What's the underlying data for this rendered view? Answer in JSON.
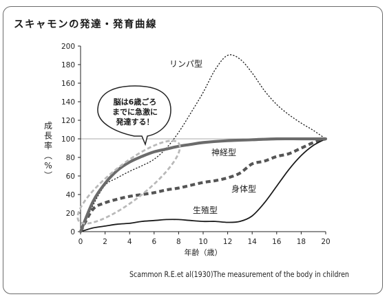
{
  "title": "スキャモンの発達・発育曲線",
  "source": "Scammon R.E.et al(1930)The measurement of the body in children",
  "chart_data": {
    "type": "line",
    "ylabel": "成長率（%）",
    "xlabel": "年齢（歳）",
    "xlim": [
      0,
      20
    ],
    "ylim": [
      0,
      200
    ],
    "xticks": [
      0,
      2,
      4,
      6,
      8,
      10,
      12,
      14,
      16,
      18,
      20
    ],
    "yticks": [
      0,
      20,
      40,
      60,
      80,
      100,
      120,
      140,
      160,
      180,
      200
    ],
    "grid": false,
    "series": [
      {
        "name": "リンパ型",
        "style": "dotted",
        "color": "#1a1a1a",
        "x": [
          0,
          1,
          2,
          3,
          4,
          5,
          6,
          7,
          8,
          9,
          10,
          11,
          12,
          13,
          14,
          15,
          16,
          17,
          18,
          19,
          20
        ],
        "y": [
          0,
          28,
          50,
          58,
          65,
          71,
          78,
          90,
          107,
          128,
          150,
          175,
          190,
          186,
          171,
          152,
          137,
          126,
          117,
          109,
          100
        ]
      },
      {
        "name": "神経型",
        "style": "solid",
        "color": "#6b6b6b",
        "x": [
          0,
          1,
          2,
          3,
          4,
          5,
          6,
          7,
          8,
          9,
          10,
          12,
          14,
          16,
          18,
          20
        ],
        "y": [
          0,
          32,
          52,
          66,
          75,
          81,
          86,
          89,
          92,
          94,
          96,
          98,
          99,
          100,
          100,
          100
        ]
      },
      {
        "name": "身体型",
        "style": "dashed",
        "color": "#555555",
        "x": [
          0,
          1,
          2,
          3,
          4,
          5,
          6,
          7,
          8,
          9,
          10,
          11,
          12,
          13,
          14,
          15,
          16,
          17,
          18,
          19,
          20
        ],
        "y": [
          0,
          24,
          31,
          35,
          38,
          40,
          42,
          45,
          47,
          50,
          53,
          55,
          58,
          63,
          73,
          76,
          81,
          84,
          90,
          96,
          100
        ]
      },
      {
        "name": "生殖型",
        "style": "solid",
        "color": "#1a1a1a",
        "x": [
          0,
          1,
          2,
          3,
          4,
          5,
          6,
          7,
          8,
          9,
          10,
          11,
          12,
          13,
          14,
          15,
          16,
          17,
          18,
          19,
          20
        ],
        "y": [
          0,
          4,
          6,
          8,
          9,
          11,
          12,
          13,
          13,
          12,
          11,
          11,
          10,
          11,
          17,
          31,
          49,
          67,
          82,
          93,
          100
        ]
      }
    ],
    "reference_line": {
      "y": 100
    },
    "callout": "脳は6歳ごろまでに急激に発達する！",
    "callout_lines": [
      "脳は6歳ごろ",
      "までに急激に",
      "発達する！"
    ]
  }
}
